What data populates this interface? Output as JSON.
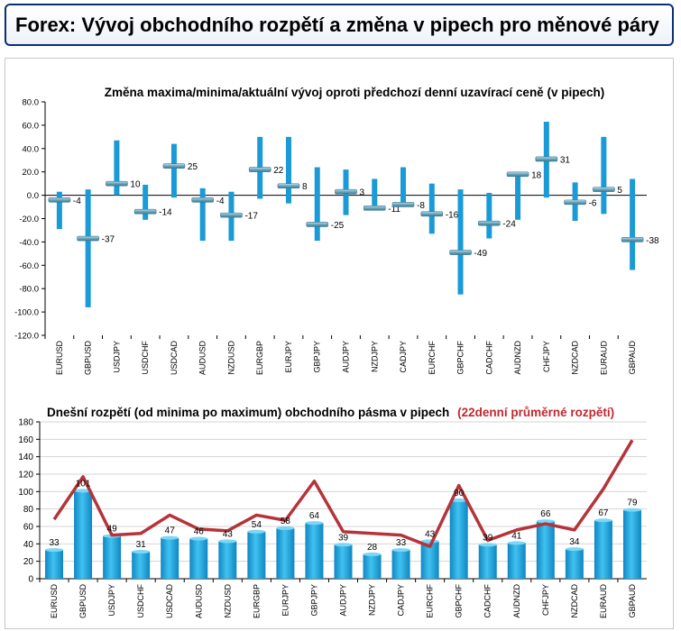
{
  "header": {
    "title": "Forex: Vývoj obchodního rozpětí a změna v pipech pro měnové páry"
  },
  "chart_data": [
    {
      "type": "bar",
      "title": "Změna maxima/minima/aktuální vývoj oproti předchozí denní uzavírací ceně (v pipech)",
      "categories": [
        "EURUSD",
        "GBPUSD",
        "USDJPY",
        "USDCHF",
        "USDCAD",
        "AUDUSD",
        "NZDUSD",
        "EURGBP",
        "EURJPY",
        "GBPJPY",
        "AUDJPY",
        "NZDJPY",
        "CADJPY",
        "EURCHF",
        "GBPCHF",
        "CADCHF",
        "AUDNZD",
        "CHFJPY",
        "NZDCAD",
        "EURAUD",
        "GBPAUD"
      ],
      "high": [
        3,
        5,
        47,
        9,
        44,
        6,
        3,
        50,
        50,
        24,
        22,
        14,
        24,
        10,
        5,
        2,
        20,
        63,
        11,
        50,
        14
      ],
      "low": [
        -29,
        -96,
        0,
        -21,
        -2,
        -39,
        -39,
        -3,
        -7,
        -39,
        -17,
        -13,
        -9,
        -33,
        -85,
        -37,
        -21,
        -2,
        -22,
        -16,
        -64
      ],
      "current": [
        -4,
        -37,
        10,
        -14,
        25,
        -4,
        -17,
        22,
        8,
        -25,
        3,
        -11,
        -8,
        -16,
        -49,
        -24,
        18,
        31,
        -6,
        5,
        -38
      ],
      "current_labels": [
        "-4",
        "-37",
        "10",
        "-14",
        "25",
        "-4",
        "-17",
        "22",
        "8",
        "-25",
        "3",
        "-11",
        "-8",
        "-16",
        "-49",
        "-24",
        "18",
        "31",
        "-6",
        "5",
        "-38"
      ],
      "ylim": [
        -120,
        80
      ],
      "yticks": [
        "80.0",
        "60.0",
        "40.0",
        "20.0",
        "0.0",
        "-20.0",
        "-40.0",
        "-60.0",
        "-80.0",
        "-100.0",
        "-120.0"
      ],
      "ytick_values": [
        80,
        60,
        40,
        20,
        0,
        -20,
        -40,
        -60,
        -80,
        -100,
        -120
      ],
      "grid": false,
      "colors": {
        "range": "#1a9ad6",
        "current": "#4a8aa3"
      }
    },
    {
      "type": "bar",
      "title": "Dnešní rozpětí (od minima po maximum) obchodního pásma v pipech",
      "title_suffix": "(22denní průměrné rozpětí)",
      "categories": [
        "EURUSD",
        "GBPUSD",
        "USDJPY",
        "USDCHF",
        "USDCAD",
        "AUDUSD",
        "NZDUSD",
        "EURGBP",
        "EURJPY",
        "GBPJPY",
        "AUDJPY",
        "NZDJPY",
        "CADJPY",
        "EURCHF",
        "GBPCHF",
        "CADCHF",
        "AUDNZD",
        "CHFJPY",
        "NZDCAD",
        "EURAUD",
        "GBPAUD"
      ],
      "values": [
        33,
        101,
        49,
        31,
        47,
        46,
        43,
        54,
        58,
        64,
        39,
        28,
        33,
        43,
        90,
        39,
        41,
        66,
        34,
        67,
        79
      ],
      "value_labels": [
        "33",
        "101",
        "49",
        "31",
        "47",
        "46",
        "43",
        "54",
        "58",
        "64",
        "39",
        "28",
        "33",
        "43",
        "90",
        "39",
        "41",
        "66",
        "34",
        "67",
        "79"
      ],
      "series": [
        {
          "values": [
            33,
            101,
            49,
            31,
            47,
            46,
            43,
            54,
            58,
            64,
            39,
            28,
            33,
            43,
            90,
            39,
            41,
            66,
            34,
            67,
            79
          ]
        },
        {
          "values": [
            68,
            117,
            50,
            52,
            73,
            57,
            55,
            73,
            67,
            112,
            54,
            52,
            50,
            37,
            107,
            44,
            56,
            63,
            56,
            103,
            159
          ]
        }
      ],
      "ylim": [
        0,
        180
      ],
      "yticks": [
        "180",
        "160",
        "140",
        "120",
        "100",
        "80",
        "60",
        "40",
        "20",
        "0"
      ],
      "ytick_values": [
        180,
        160,
        140,
        120,
        100,
        80,
        60,
        40,
        20,
        0
      ],
      "grid": true,
      "colors": {
        "bar": "#1aa3dc",
        "line": "#b5343a",
        "suffix": "#c0282f"
      }
    }
  ]
}
